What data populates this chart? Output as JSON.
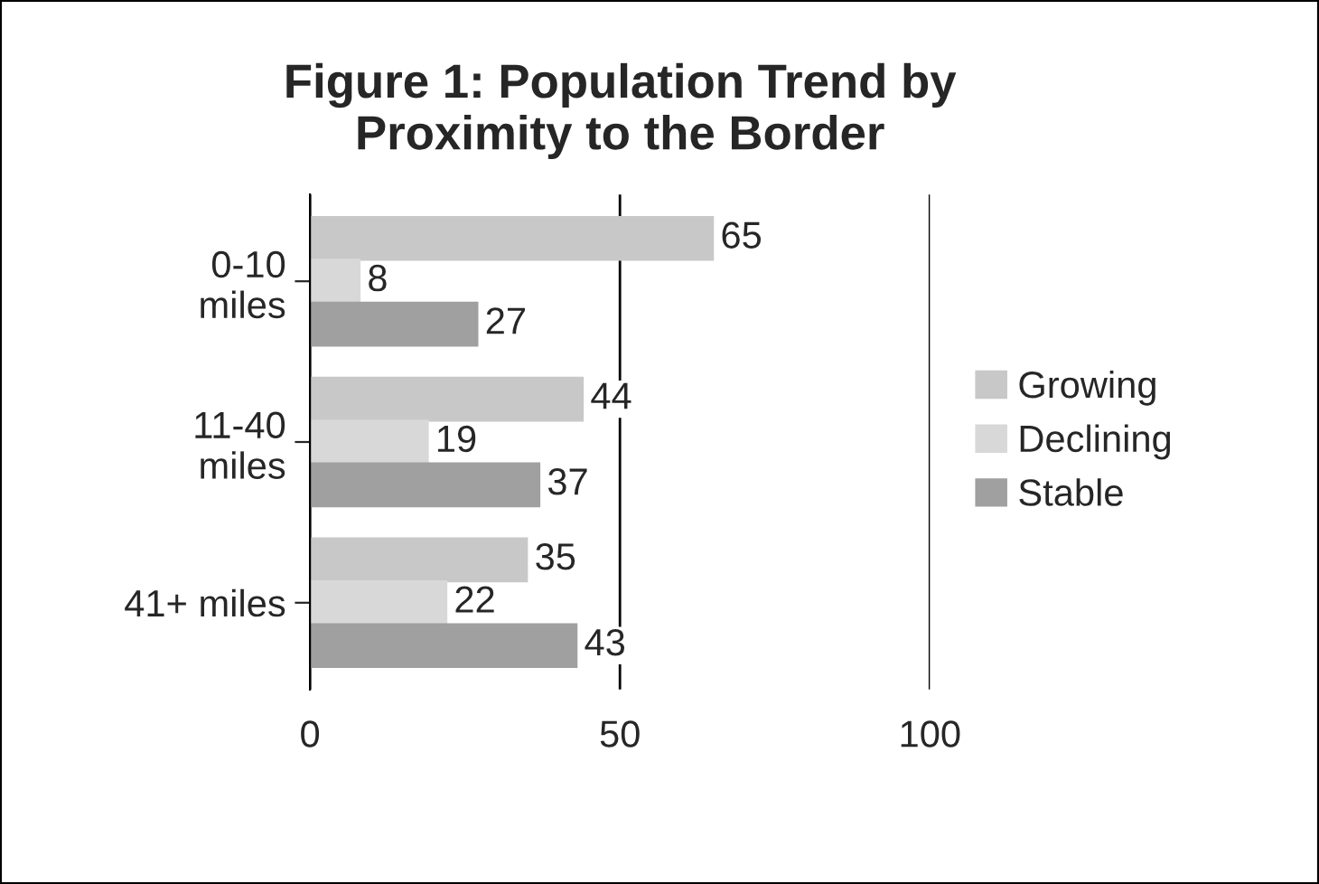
{
  "chart_data": {
    "type": "bar",
    "orientation": "horizontal",
    "title": "Figure 1: Population Trend by\nProximity to the Border",
    "categories": [
      "0-10\nmiles",
      "11-40\nmiles",
      "41+ miles"
    ],
    "series": [
      {
        "name": "Growing",
        "color": "#c8c8c8",
        "values": [
          65,
          44,
          35
        ]
      },
      {
        "name": "Declining",
        "color": "#d8d8d8",
        "values": [
          8,
          19,
          22
        ]
      },
      {
        "name": "Stable",
        "color": "#a0a0a0",
        "values": [
          27,
          37,
          43
        ]
      }
    ],
    "xlim": [
      0,
      100
    ],
    "xticks": [
      0,
      50,
      100
    ],
    "grid": "x",
    "legend": "right",
    "data_labels": true
  }
}
